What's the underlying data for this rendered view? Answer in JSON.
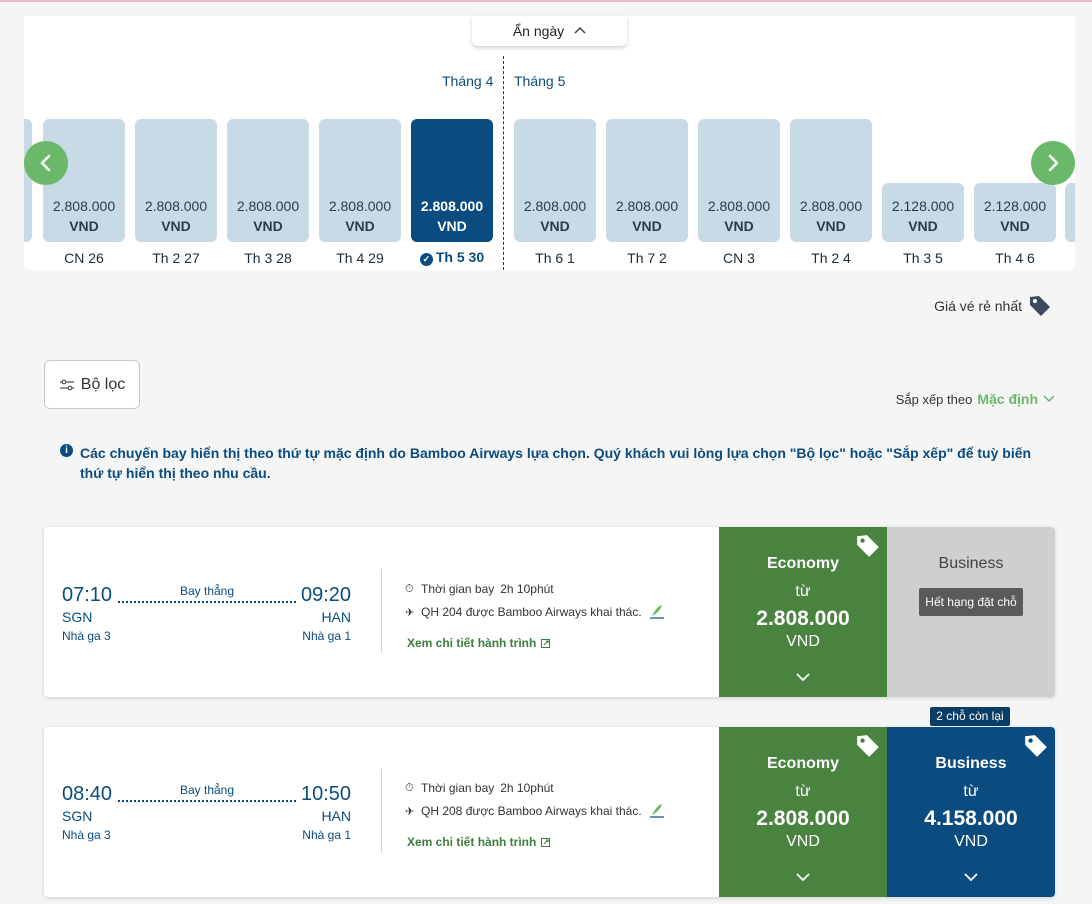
{
  "date_carousel": {
    "toggle_label": "Ẩn ngày",
    "month_left": "Tháng 4",
    "month_right": "Tháng 5",
    "days": [
      {
        "date": "CN 26",
        "price": "2.808.000",
        "currency": "VND",
        "selected": false
      },
      {
        "date": "Th 2 27",
        "price": "2.808.000",
        "currency": "VND",
        "selected": false
      },
      {
        "date": "Th 3 28",
        "price": "2.808.000",
        "currency": "VND",
        "selected": false
      },
      {
        "date": "Th 4 29",
        "price": "2.808.000",
        "currency": "VND",
        "selected": false
      },
      {
        "date": "Th 5 30",
        "price": "2.808.000",
        "currency": "VND",
        "selected": true
      },
      {
        "date": "Th 6 1",
        "price": "2.808.000",
        "currency": "VND",
        "selected": false
      },
      {
        "date": "Th 7 2",
        "price": "2.808.000",
        "currency": "VND",
        "selected": false
      },
      {
        "date": "CN 3",
        "price": "2.808.000",
        "currency": "VND",
        "selected": false
      },
      {
        "date": "Th 2 4",
        "price": "2.808.000",
        "currency": "VND",
        "selected": false
      },
      {
        "date": "Th 3 5",
        "price": "2.128.000",
        "currency": "VND",
        "selected": false
      },
      {
        "date": "Th 4 6",
        "price": "2.128.000",
        "currency": "VND",
        "selected": false
      }
    ]
  },
  "legend": {
    "cheapest_label": "Giá vé rẻ nhất"
  },
  "toolbar": {
    "filter_label": "Bộ lọc",
    "sort_prefix": "Sắp xếp theo",
    "sort_value": "Mặc định"
  },
  "notice": "Các chuyến bay hiển thị theo thứ tự mặc định do Bamboo Airways lựa chọn. Quý khách vui lòng lựa chọn \"Bộ lọc\" hoặc \"Sắp xếp\" để tuỳ biến thứ tự hiển thị theo nhu cầu.",
  "flights": [
    {
      "depart_time": "07:10",
      "arrive_time": "09:20",
      "origin": "SGN",
      "destination": "HAN",
      "origin_terminal": "Nhà ga 3",
      "destination_terminal": "Nhà ga 1",
      "stops": "Bay thẳng",
      "duration_label": "Thời gian bay",
      "duration": "2h 10phút",
      "flight_info": "QH 204 được Bamboo Airways khai thác.",
      "details_link": "Xem chi tiết hành trình",
      "economy": {
        "class": "Economy",
        "from": "từ",
        "price": "2.808.000",
        "currency": "VND"
      },
      "business": {
        "class": "Business",
        "status": "Hết hạng đặt chỗ"
      }
    },
    {
      "depart_time": "08:40",
      "arrive_time": "10:50",
      "origin": "SGN",
      "destination": "HAN",
      "origin_terminal": "Nhà ga 3",
      "destination_terminal": "Nhà ga 1",
      "stops": "Bay thẳng",
      "duration_label": "Thời gian bay",
      "duration": "2h 10phút",
      "flight_info": "QH 208 được Bamboo Airways khai thác.",
      "details_link": "Xem chi tiết hành trình",
      "economy": {
        "class": "Economy",
        "from": "từ",
        "price": "2.808.000",
        "currency": "VND"
      },
      "business": {
        "class": "Business",
        "from": "từ",
        "price": "4.158.000",
        "currency": "VND",
        "seats_left": "2 chỗ còn lại"
      }
    }
  ],
  "colors": {
    "accent_green": "#6bb86a",
    "economy_green": "#4a8340",
    "brand_blue": "#0a4c7f",
    "bar_light": "#c9dae7"
  }
}
